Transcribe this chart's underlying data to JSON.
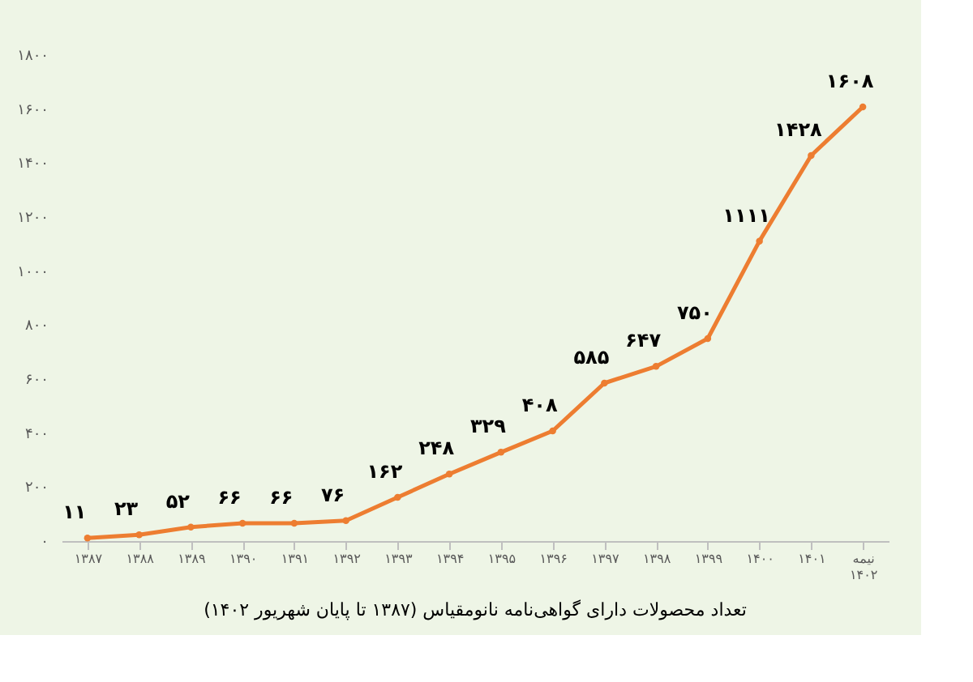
{
  "chart_data": {
    "type": "line",
    "title": "تعداد محصولات دارای گواهی‌نامه نانومقیاس (۱۳۸۷ تا پایان شهریور ۱۴۰۲)",
    "categories": [
      "۱۳۸۷",
      "۱۳۸۸",
      "۱۳۸۹",
      "۱۳۹۰",
      "۱۳۹۱",
      "۱۳۹۲",
      "۱۳۹۳",
      "۱۳۹۴",
      "۱۳۹۵",
      "۱۳۹۶",
      "۱۳۹۷",
      "۱۳۹۸",
      "۱۳۹۹",
      "۱۴۰۰",
      "۱۴۰۱",
      "نیمه ۱۴۰۲"
    ],
    "series": [
      {
        "color": "#ed7d31",
        "values": [
          11,
          23,
          52,
          66,
          66,
          76,
          162,
          248,
          329,
          408,
          585,
          647,
          750,
          1111,
          1428,
          1608
        ],
        "value_labels": [
          "۱۱",
          "۲۳",
          "۵۲",
          "۶۶",
          "۶۶",
          "۷۶",
          "۱۶۲",
          "۲۴۸",
          "۳۲۹",
          "۴۰۸",
          "۵۸۵",
          "۶۴۷",
          "۷۵۰",
          "۱۱۱۱",
          "۱۴۲۸",
          "۱۶۰۸"
        ]
      }
    ],
    "ylim": [
      0,
      1800
    ],
    "yticks": [
      {
        "value": 0,
        "label": "۰"
      },
      {
        "value": 200,
        "label": "۲۰۰"
      },
      {
        "value": 400,
        "label": "۴۰۰"
      },
      {
        "value": 600,
        "label": "۶۰۰"
      },
      {
        "value": 800,
        "label": "۸۰۰"
      },
      {
        "value": 1000,
        "label": "۱۰۰۰"
      },
      {
        "value": 1200,
        "label": "۱۲۰۰"
      },
      {
        "value": 1400,
        "label": "۱۴۰۰"
      },
      {
        "value": 1600,
        "label": "۱۶۰۰"
      },
      {
        "value": 1800,
        "label": "۱۸۰۰"
      }
    ],
    "grid": false,
    "legend": false,
    "marker": "circle",
    "line_style": "solid"
  }
}
